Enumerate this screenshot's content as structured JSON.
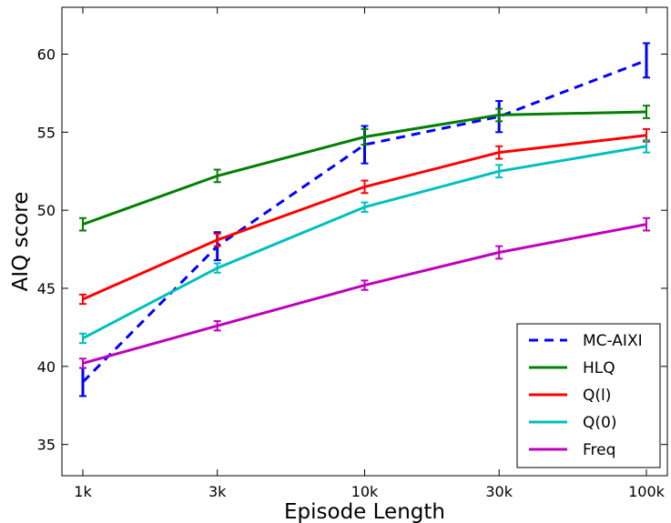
{
  "chart_data": {
    "type": "line",
    "xlabel": "Episode Length",
    "ylabel": "AIQ score",
    "x_scale": "log",
    "x": [
      1000,
      3000,
      10000,
      30000,
      100000
    ],
    "x_tick_labels": [
      "1k",
      "3k",
      "10k",
      "30k",
      "100k"
    ],
    "xlim": [
      1000,
      100000
    ],
    "ylim": [
      33,
      63
    ],
    "y_ticks": [
      35,
      40,
      45,
      50,
      55,
      60
    ],
    "grid": false,
    "legend_position": "bottom-right",
    "series": [
      {
        "name": "MC-AIXI",
        "color": "#0000ff",
        "dash": true,
        "values": [
          39.0,
          47.7,
          54.2,
          56.0,
          59.6
        ],
        "errors": [
          0.9,
          0.9,
          1.2,
          1.0,
          1.1
        ]
      },
      {
        "name": "HLQ",
        "color": "#008000",
        "dash": false,
        "values": [
          49.1,
          52.2,
          54.7,
          56.1,
          56.3
        ],
        "errors": [
          0.4,
          0.4,
          0.5,
          0.4,
          0.4
        ]
      },
      {
        "name": "Q(l)",
        "color": "#ff0000",
        "dash": false,
        "values": [
          44.3,
          48.1,
          51.5,
          53.7,
          54.8
        ],
        "errors": [
          0.3,
          0.4,
          0.4,
          0.4,
          0.4
        ]
      },
      {
        "name": "Q(0)",
        "color": "#00bfbf",
        "dash": false,
        "values": [
          41.8,
          46.3,
          50.2,
          52.5,
          54.1
        ],
        "errors": [
          0.3,
          0.3,
          0.3,
          0.4,
          0.4
        ]
      },
      {
        "name": "Freq",
        "color": "#bf00bf",
        "dash": false,
        "values": [
          40.2,
          42.6,
          45.2,
          47.3,
          49.1
        ],
        "errors": [
          0.3,
          0.3,
          0.3,
          0.4,
          0.4
        ]
      }
    ]
  }
}
